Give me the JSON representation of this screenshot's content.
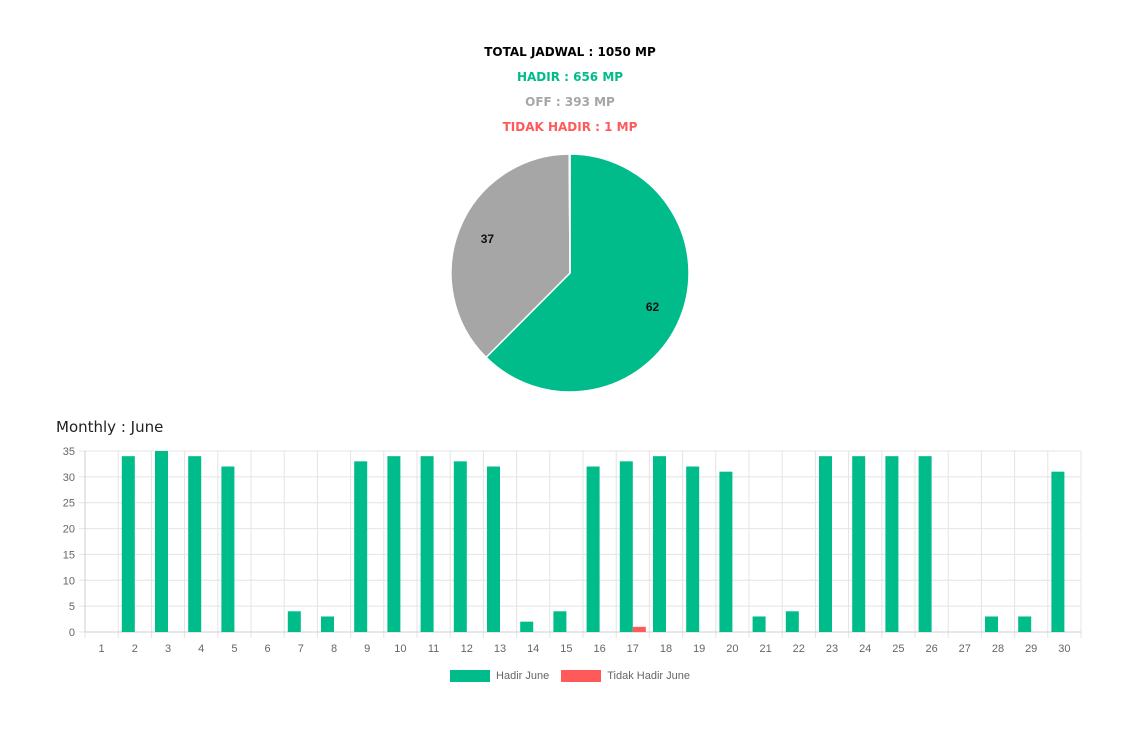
{
  "summary": {
    "total": "TOTAL JADWAL : 1050 MP",
    "hadir": "HADIR : 656 MP",
    "off": "OFF : 393 MP",
    "tidak_hadir": "TIDAK HADIR : 1 MP"
  },
  "colors": {
    "total": "#000000",
    "hadir": "#00bc8a",
    "off": "#a6a6a6",
    "tidak_hadir": "#ff5a5a",
    "grid": "#e4e4e4",
    "axis_text": "#666666"
  },
  "monthly_title": "Monthly : June",
  "chart_data": [
    {
      "type": "pie",
      "slices": [
        {
          "label": "62",
          "value": 62.4,
          "color": "#00bc8a"
        },
        {
          "label": "37",
          "value": 37.4,
          "color": "#a6a6a6"
        },
        {
          "label": "",
          "value": 0.1,
          "color": "#ff5a5a"
        }
      ]
    },
    {
      "type": "bar",
      "categories": [
        "1",
        "2",
        "3",
        "4",
        "5",
        "6",
        "7",
        "8",
        "9",
        "10",
        "11",
        "12",
        "13",
        "14",
        "15",
        "16",
        "17",
        "18",
        "19",
        "20",
        "21",
        "22",
        "23",
        "24",
        "25",
        "26",
        "27",
        "28",
        "29",
        "30"
      ],
      "series": [
        {
          "name": "Hadir June",
          "color": "#00bc8a",
          "values": [
            0,
            34,
            35,
            34,
            32,
            0,
            4,
            3,
            33,
            34,
            34,
            33,
            32,
            2,
            4,
            32,
            33,
            34,
            32,
            31,
            3,
            4,
            34,
            34,
            34,
            34,
            0,
            3,
            3,
            31
          ]
        },
        {
          "name": "Tidak Hadir June",
          "color": "#ff5a5a",
          "values": [
            0,
            0,
            0,
            0,
            0,
            0,
            0,
            0,
            0,
            0,
            0,
            0,
            0,
            0,
            0,
            0,
            1,
            0,
            0,
            0,
            0,
            0,
            0,
            0,
            0,
            0,
            0,
            0,
            0,
            0
          ]
        }
      ],
      "yticks": [
        0,
        5,
        10,
        15,
        20,
        25,
        30,
        35
      ],
      "ylim": [
        0,
        35
      ],
      "grid": true,
      "legend": "bottom"
    }
  ]
}
